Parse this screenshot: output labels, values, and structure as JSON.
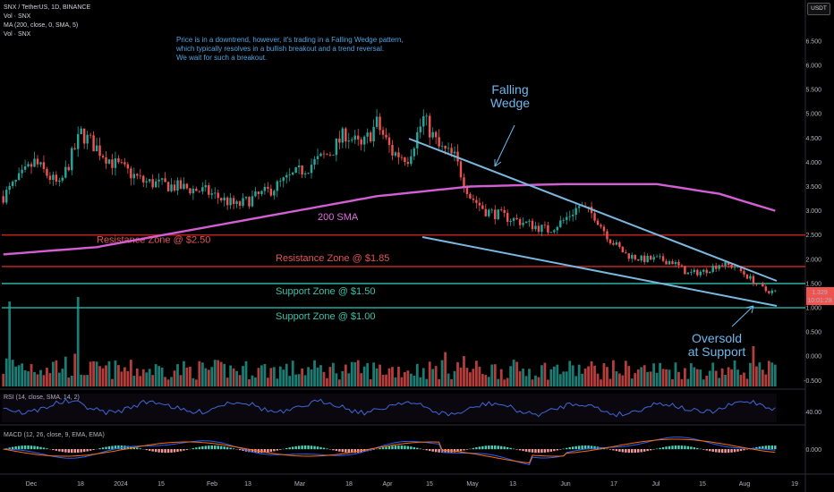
{
  "header": {
    "symbol": "SNX / TetherUS, 1D, BINANCE",
    "lines": [
      "Vol · SNX",
      "MA (200, close, 0, SMA, 5)",
      "Vol · SNX"
    ],
    "currency_button": "USDT"
  },
  "annotation_text": [
    "Price is in a downtrend, however, it's trading in a Falling Wedge pattern,",
    "which typically resolves in a bullish breakout and a trend reversal.",
    "We wait for such a breakout."
  ],
  "chart_data": {
    "type": "candlestick",
    "y_ticks": [
      "6.500",
      "6.000",
      "5.500",
      "5.000",
      "4.500",
      "4.000",
      "3.500",
      "3.000",
      "2.500",
      "2.000",
      "1.500",
      "1.000",
      "0.500",
      "0.000",
      "-0.500"
    ],
    "x_ticks": [
      "Dec",
      "18",
      "2024",
      "15",
      "Feb",
      "13",
      "Mar",
      "18",
      "Apr",
      "15",
      "May",
      "13",
      "Jun",
      "17",
      "Jul",
      "15",
      "Aug",
      "19"
    ],
    "ylim": [
      -0.6,
      6.8
    ],
    "price_label": "1.329",
    "countdown_label": "10:01:28",
    "zones": [
      {
        "name": "Resistance Zone @ $2.50",
        "price": 2.5,
        "color": "#b22222"
      },
      {
        "name": "Resistance Zone @ $1.85",
        "price": 1.85,
        "color": "#b22222"
      },
      {
        "name": "Support Zone @ $1.50",
        "price": 1.5,
        "color": "#26a69a"
      },
      {
        "name": "Support Zone @ $1.00",
        "price": 1.0,
        "color": "#26a69a"
      }
    ],
    "sma_label": "200 SMA",
    "wedge_label": [
      "Falling",
      "Wedge"
    ],
    "oversold_label": [
      "Oversold",
      "at Support"
    ],
    "price_keypoints": [
      [
        0,
        3.3
      ],
      [
        10,
        4.0
      ],
      [
        18,
        3.5
      ],
      [
        25,
        4.6
      ],
      [
        35,
        4.0
      ],
      [
        45,
        3.6
      ],
      [
        55,
        3.5
      ],
      [
        65,
        3.4
      ],
      [
        75,
        3.1
      ],
      [
        85,
        3.4
      ],
      [
        95,
        3.8
      ],
      [
        105,
        4.2
      ],
      [
        110,
        4.6
      ],
      [
        115,
        4.3
      ],
      [
        120,
        4.8
      ],
      [
        125,
        4.2
      ],
      [
        130,
        4.1
      ],
      [
        135,
        4.9
      ],
      [
        140,
        4.3
      ],
      [
        145,
        4.1
      ],
      [
        150,
        3.3
      ],
      [
        155,
        3.0
      ],
      [
        160,
        2.9
      ],
      [
        165,
        2.8
      ],
      [
        170,
        2.7
      ],
      [
        175,
        2.6
      ],
      [
        180,
        2.8
      ],
      [
        185,
        3.1
      ],
      [
        190,
        2.9
      ],
      [
        195,
        2.4
      ],
      [
        200,
        2.1
      ],
      [
        205,
        2.0
      ],
      [
        210,
        2.0
      ],
      [
        215,
        1.95
      ],
      [
        220,
        1.7
      ],
      [
        225,
        1.75
      ],
      [
        230,
        1.9
      ],
      [
        235,
        1.85
      ],
      [
        240,
        1.6
      ],
      [
        245,
        1.35
      ],
      [
        248,
        1.33
      ]
    ],
    "sma_keypoints": [
      [
        0,
        2.1
      ],
      [
        30,
        2.25
      ],
      [
        60,
        2.6
      ],
      [
        90,
        2.95
      ],
      [
        120,
        3.3
      ],
      [
        150,
        3.5
      ],
      [
        180,
        3.55
      ],
      [
        210,
        3.55
      ],
      [
        230,
        3.35
      ],
      [
        248,
        3.0
      ]
    ],
    "rsi": {
      "label": "RSI (14, close, SMA, 14, 2)",
      "tick": "40.00"
    },
    "macd": {
      "label": "MACD (12, 26, close, 9, EMA, EMA)",
      "tick": "0.000"
    }
  }
}
